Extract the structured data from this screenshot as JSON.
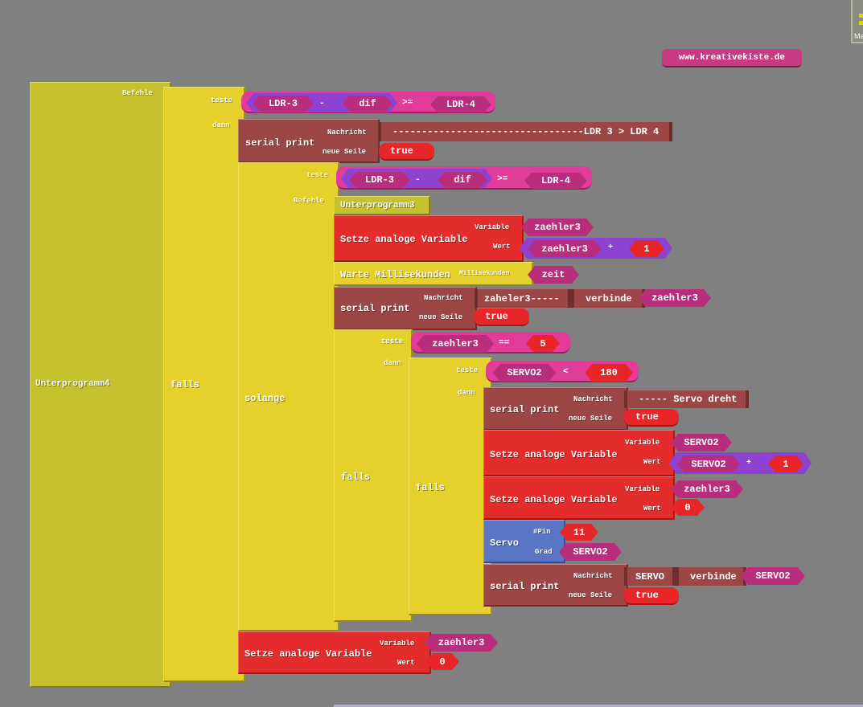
{
  "colors": {
    "background": "#808080",
    "subroutine": "#c6c22e",
    "control": "#e6d12c",
    "serial": "#9c4646",
    "variable_set": "#e42c2c",
    "servo": "#5a74c6",
    "comparison": "#e23c9a",
    "math": "#8e42d2",
    "variable": "#b82e7c",
    "constant": "#e8262a"
  },
  "watermark": "www.kreativekiste.de",
  "panel": {
    "label": "Ma"
  },
  "labels": {
    "befehle": "Befehle",
    "teste": "teste",
    "dann": "dann",
    "nachricht": "Nachricht",
    "neue_seile": "neue Seile",
    "variable": "Variable",
    "wert": "Wert",
    "millisekunden": "Millisekunden",
    "pin": "#Pin",
    "grad": "Grad"
  },
  "blocks": {
    "sub4": "Unterprogramm4",
    "falls1": "falls",
    "cond1": {
      "a": "LDR-3",
      "op1": "-",
      "b": "dif",
      "cmp": ">=",
      "c": "LDR-4"
    },
    "print1": {
      "title": "serial print",
      "message": "---------------------------------LDR 3 > LDR 4",
      "newline": "true"
    },
    "solange": "solange",
    "cond2": {
      "a": "LDR-3",
      "op1": "-",
      "b": "dif",
      "cmp": ">=",
      "c": "LDR-4"
    },
    "sub3": "Unterprogramm3",
    "set1": {
      "title": "Setze analoge Variable",
      "variable": "zaehler3",
      "a": "zaehler3",
      "op": "+",
      "b": "1"
    },
    "wait": {
      "title": "Warte Millisekunden",
      "value": "zeit"
    },
    "print2": {
      "title": "serial print",
      "message": "zaheler3-----",
      "join": "verbinde",
      "var": "zaehler3",
      "newline": "true"
    },
    "falls2": "falls",
    "cond3": {
      "a": "zaehler3",
      "cmp": "==",
      "b": "5"
    },
    "falls3": "falls",
    "cond4": {
      "a": "SERVO2",
      "cmp": "<",
      "b": "180"
    },
    "print3": {
      "title": "serial print",
      "message": "----- Servo dreht",
      "newline": "true"
    },
    "set2": {
      "title": "Setze analoge Variable",
      "variable": "SERVO2",
      "a": "SERVO2",
      "op": "+",
      "b": "1"
    },
    "set3": {
      "title": "Setze analoge Variable",
      "variable": "zaehler3",
      "value": "0"
    },
    "servo": {
      "title": "Servo",
      "pin": "11",
      "grad": "SERVO2"
    },
    "print4": {
      "title": "serial print",
      "message": "SERVO",
      "join": "verbinde",
      "var": "SERVO2",
      "newline": "true"
    },
    "set4": {
      "title": "Setze analoge Variable",
      "variable": "zaehler3",
      "value": "0"
    }
  }
}
